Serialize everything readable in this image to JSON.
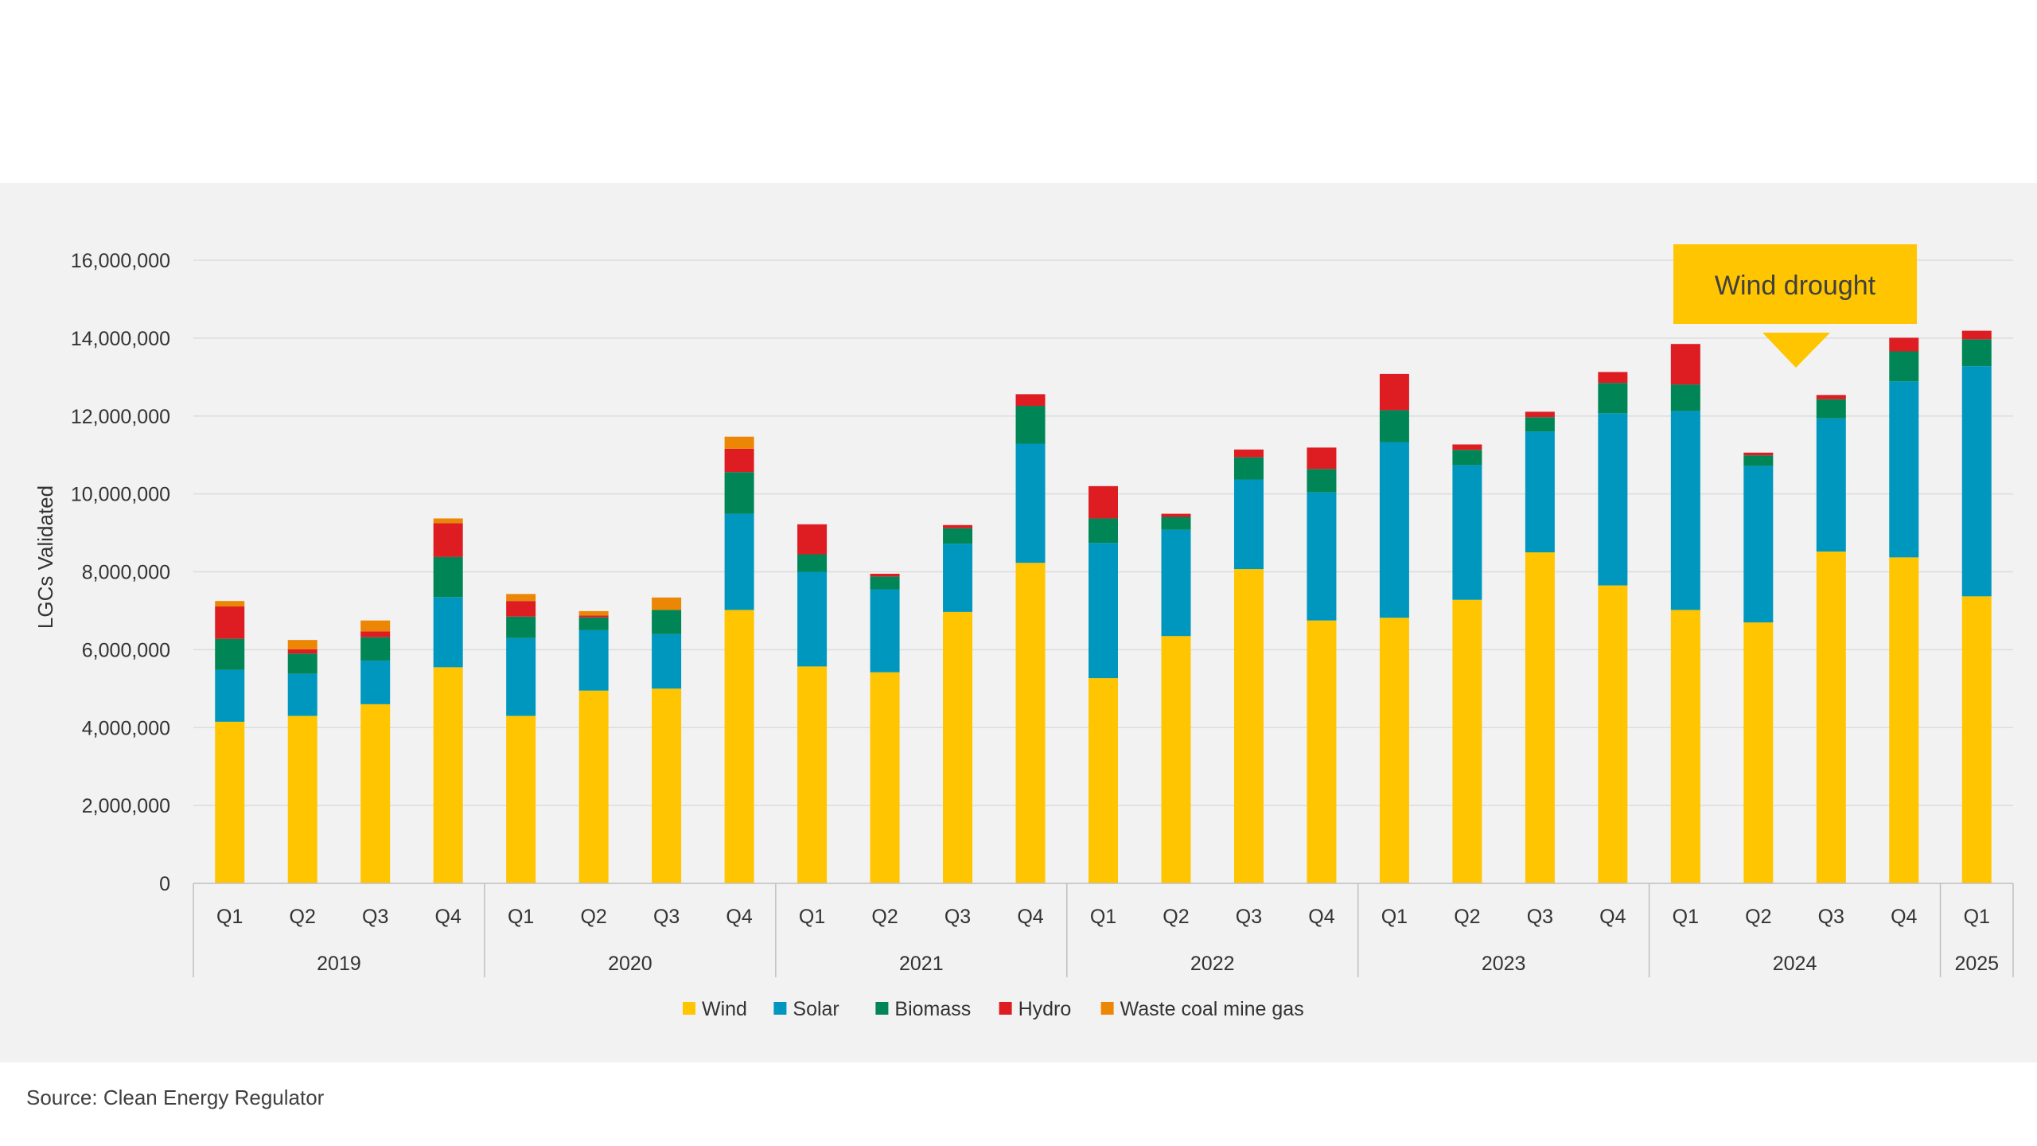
{
  "source": "Source: Clean Energy Regulator",
  "annotation": {
    "text": "Wind drought",
    "color": "#FFC500"
  },
  "chart_data": {
    "type": "bar",
    "stacked": true,
    "ylabel": "LGCs Validated",
    "ylim": [
      0,
      16000000
    ],
    "yticks": [
      "0",
      "2,000,000",
      "4,000,000",
      "6,000,000",
      "8,000,000",
      "10,000,000",
      "12,000,000",
      "14,000,000",
      "16,000,000"
    ],
    "grid": true,
    "legend_position": "bottom-center",
    "categories": [
      {
        "q": "Q1",
        "year": "2019"
      },
      {
        "q": "Q2",
        "year": "2019"
      },
      {
        "q": "Q3",
        "year": "2019"
      },
      {
        "q": "Q4",
        "year": "2019"
      },
      {
        "q": "Q1",
        "year": "2020"
      },
      {
        "q": "Q2",
        "year": "2020"
      },
      {
        "q": "Q3",
        "year": "2020"
      },
      {
        "q": "Q4",
        "year": "2020"
      },
      {
        "q": "Q1",
        "year": "2021"
      },
      {
        "q": "Q2",
        "year": "2021"
      },
      {
        "q": "Q3",
        "year": "2021"
      },
      {
        "q": "Q4",
        "year": "2021"
      },
      {
        "q": "Q1",
        "year": "2022"
      },
      {
        "q": "Q2",
        "year": "2022"
      },
      {
        "q": "Q3",
        "year": "2022"
      },
      {
        "q": "Q4",
        "year": "2022"
      },
      {
        "q": "Q1",
        "year": "2023"
      },
      {
        "q": "Q2",
        "year": "2023"
      },
      {
        "q": "Q3",
        "year": "2023"
      },
      {
        "q": "Q4",
        "year": "2023"
      },
      {
        "q": "Q1",
        "year": "2024"
      },
      {
        "q": "Q2",
        "year": "2024"
      },
      {
        "q": "Q3",
        "year": "2024"
      },
      {
        "q": "Q4",
        "year": "2024"
      },
      {
        "q": "Q1",
        "year": "2025"
      }
    ],
    "years": [
      "2019",
      "2020",
      "2021",
      "2022",
      "2023",
      "2024",
      "2025"
    ],
    "series": [
      {
        "name": "Wind",
        "color": "#FFC500",
        "values": [
          4150000,
          4300000,
          4600000,
          5550000,
          4300000,
          4950000,
          5000000,
          7020000,
          5570000,
          5420000,
          6970000,
          8230000,
          5270000,
          6350000,
          8070000,
          6750000,
          6820000,
          7280000,
          8500000,
          7650000,
          7020000,
          6700000,
          8520000,
          8370000,
          7370000
        ]
      },
      {
        "name": "Solar",
        "color": "#0097BF",
        "values": [
          1330000,
          1080000,
          1120000,
          1800000,
          2000000,
          1550000,
          1400000,
          2470000,
          2430000,
          2130000,
          1750000,
          3060000,
          3470000,
          2730000,
          2300000,
          3290000,
          4510000,
          3460000,
          3100000,
          4420000,
          5110000,
          4020000,
          3420000,
          4520000,
          5910000
        ]
      },
      {
        "name": "Biomass",
        "color": "#008557",
        "values": [
          800000,
          520000,
          600000,
          1030000,
          550000,
          330000,
          620000,
          1070000,
          450000,
          330000,
          400000,
          970000,
          630000,
          330000,
          570000,
          600000,
          820000,
          390000,
          370000,
          780000,
          680000,
          270000,
          490000,
          770000,
          690000
        ]
      },
      {
        "name": "Hydro",
        "color": "#DD1D21",
        "values": [
          830000,
          110000,
          150000,
          870000,
          400000,
          50000,
          0,
          600000,
          770000,
          70000,
          80000,
          300000,
          830000,
          80000,
          200000,
          550000,
          930000,
          140000,
          140000,
          280000,
          1040000,
          70000,
          110000,
          350000,
          220000
        ]
      },
      {
        "name": "Waste coal mine gas",
        "color": "#EB8705",
        "values": [
          140000,
          240000,
          280000,
          120000,
          180000,
          110000,
          320000,
          310000,
          0,
          0,
          0,
          0,
          0,
          0,
          0,
          0,
          0,
          0,
          0,
          0,
          0,
          0,
          0,
          0,
          0
        ]
      }
    ]
  }
}
